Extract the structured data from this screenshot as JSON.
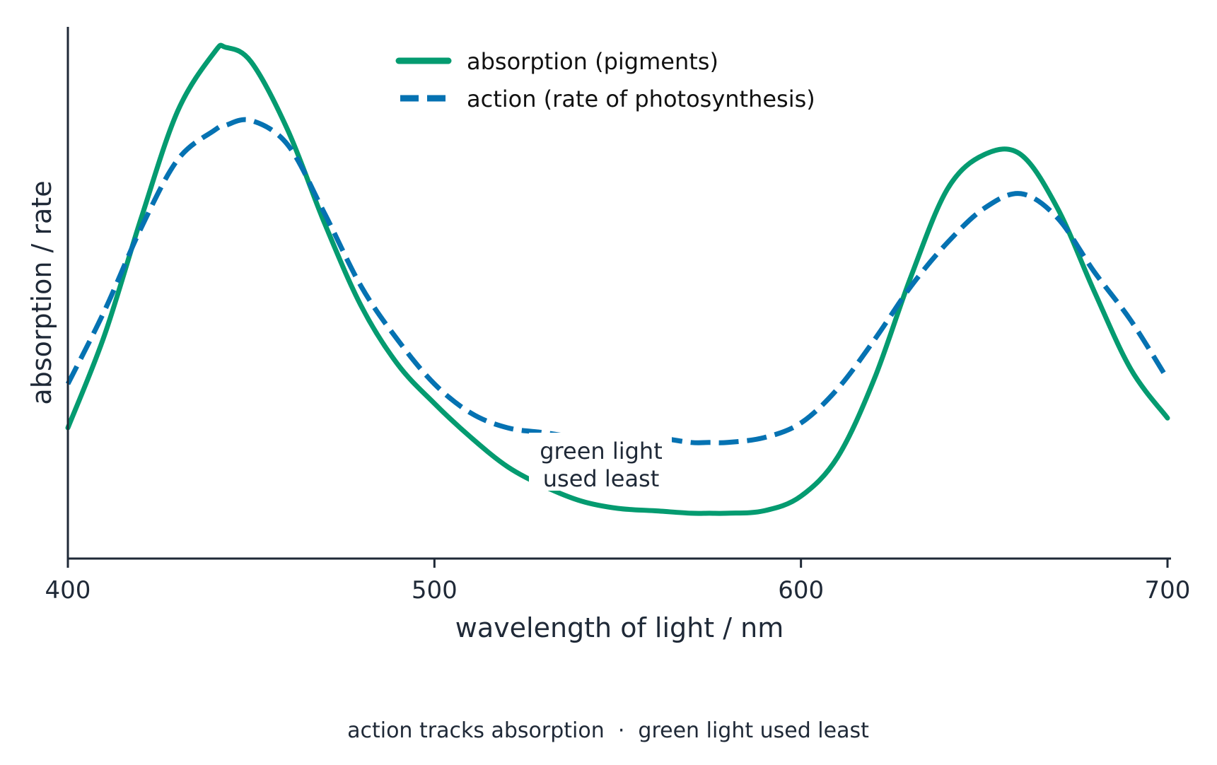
{
  "chart_data": {
    "type": "line",
    "title": "",
    "xlabel": "wavelength of light / nm",
    "ylabel": "absorption / rate",
    "xlim": [
      400,
      700
    ],
    "ylim": [
      0,
      1
    ],
    "x_ticks": [
      400,
      500,
      600,
      700
    ],
    "x_tick_labels": [
      "400",
      "500",
      "600",
      "700"
    ],
    "y_ticks": [],
    "grid": false,
    "legend_position": "top-center",
    "x": [
      400,
      410,
      420,
      430,
      440,
      443,
      450,
      460,
      470,
      480,
      490,
      500,
      510,
      520,
      530,
      540,
      550,
      560,
      570,
      575,
      580,
      590,
      600,
      610,
      620,
      630,
      640,
      650,
      660,
      670,
      680,
      690,
      700
    ],
    "series": [
      {
        "name": "absorption (pigments)",
        "style": "solid",
        "color": "#049b70",
        "values": [
          0.21,
          0.4,
          0.64,
          0.86,
          0.98,
          0.99,
          0.96,
          0.82,
          0.63,
          0.46,
          0.34,
          0.26,
          0.19,
          0.13,
          0.09,
          0.06,
          0.045,
          0.04,
          0.035,
          0.035,
          0.035,
          0.04,
          0.07,
          0.15,
          0.31,
          0.52,
          0.7,
          0.77,
          0.77,
          0.66,
          0.49,
          0.33,
          0.23
        ]
      },
      {
        "name": "action (rate of photosynthesis)",
        "style": "dashed",
        "color": "#0572b2",
        "values": [
          0.3,
          0.45,
          0.62,
          0.76,
          0.82,
          0.83,
          0.84,
          0.79,
          0.65,
          0.5,
          0.39,
          0.3,
          0.24,
          0.21,
          0.2,
          0.19,
          0.19,
          0.19,
          0.18,
          0.18,
          0.18,
          0.19,
          0.22,
          0.29,
          0.39,
          0.5,
          0.59,
          0.66,
          0.69,
          0.64,
          0.53,
          0.43,
          0.31
        ]
      }
    ],
    "annotation": {
      "lines": [
        "green light",
        "used least"
      ],
      "x": 545,
      "y": 0.18
    },
    "caption": "action tracks absorption  ·  green light used least"
  }
}
